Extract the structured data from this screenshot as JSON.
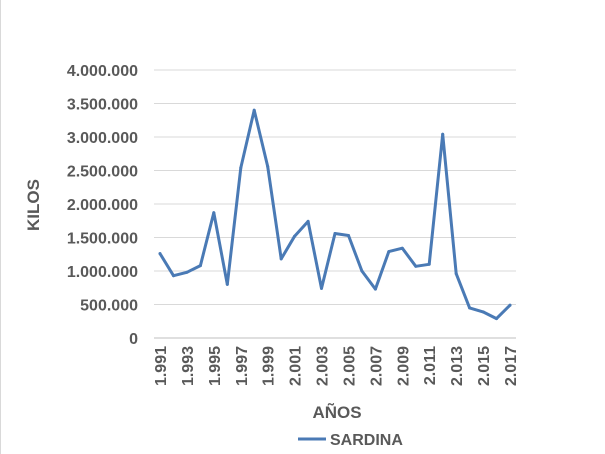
{
  "chart_data": {
    "type": "line",
    "title": "",
    "xlabel": "AÑOS",
    "ylabel": "KILOS",
    "ylim": [
      0,
      4000000
    ],
    "y_ticks": [
      0,
      500000,
      1000000,
      1500000,
      2000000,
      2500000,
      3000000,
      3500000,
      4000000
    ],
    "y_tick_labels": [
      "0",
      "500.000",
      "1.000.000",
      "1.500.000",
      "2.000.000",
      "2.500.000",
      "3.000.000",
      "3.500.000",
      "4.000.000"
    ],
    "x": [
      1991,
      1992,
      1993,
      1994,
      1995,
      1996,
      1997,
      1998,
      1999,
      2000,
      2001,
      2002,
      2003,
      2004,
      2005,
      2006,
      2007,
      2008,
      2009,
      2010,
      2011,
      2012,
      2013,
      2014,
      2015,
      2016,
      2017
    ],
    "x_tick_labels": [
      "1.991",
      "1.993",
      "1.995",
      "1.997",
      "1.999",
      "2.001",
      "2.003",
      "2.005",
      "2.007",
      "2.009",
      "2.011",
      "2.013",
      "2.015",
      "2.017"
    ],
    "x_tick_values": [
      1991,
      1993,
      1995,
      1997,
      1999,
      2001,
      2003,
      2005,
      2007,
      2009,
      2011,
      2013,
      2015,
      2017
    ],
    "grid": true,
    "legend_position": "bottom",
    "series": [
      {
        "name": "SARDINA",
        "color": "#4a7ab5",
        "values": [
          1260000,
          930000,
          980000,
          1080000,
          1870000,
          800000,
          2540000,
          3400000,
          2560000,
          1180000,
          1520000,
          1740000,
          740000,
          1560000,
          1530000,
          1000000,
          730000,
          1290000,
          1340000,
          1070000,
          1100000,
          3040000,
          960000,
          450000,
          390000,
          290000,
          490000
        ]
      }
    ]
  }
}
